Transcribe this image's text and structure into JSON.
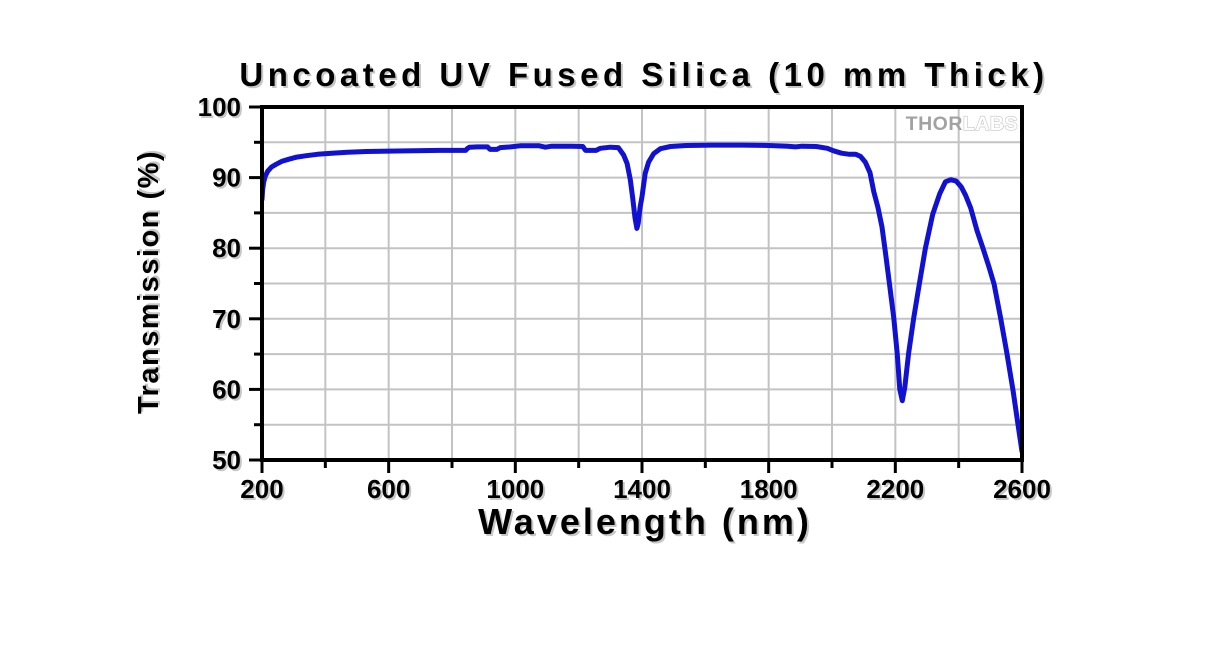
{
  "page": {
    "background": "#ffffff"
  },
  "watermark": {
    "brand_bold": "THOR",
    "brand_light": "LABS"
  },
  "colors": {
    "line": "#1111d1",
    "grid": "#c3c3c3",
    "axis": "#000000",
    "text": "#000000",
    "watermark_bold": "#a2a2a2",
    "watermark_light_stroke": "#c4c4c4",
    "watermark_light_fill": "#ffffff",
    "background": "#ffffff"
  },
  "chart_data": {
    "type": "line",
    "title": "Uncoated UV Fused Silica (10 mm Thick)",
    "xlabel": "Wavelength (nm)",
    "ylabel": "Transmission (%)",
    "xlim": [
      200,
      2600
    ],
    "ylim": [
      50,
      100
    ],
    "x_major_ticks": [
      200,
      600,
      1000,
      1400,
      1800,
      2200,
      2600
    ],
    "x_minor_ticks": [
      400,
      800,
      1200,
      1600,
      2000,
      2400
    ],
    "y_major_ticks": [
      50,
      60,
      70,
      80,
      90,
      100
    ],
    "y_minor_ticks": [
      55,
      65,
      75,
      85,
      95
    ],
    "grid": {
      "visible": true,
      "x_step": 200,
      "y_step": 5
    },
    "legend_position": "none",
    "annotations": [
      "THORLABS watermark, top-right inside plot"
    ],
    "series": [
      {
        "name": "Transmission",
        "color": "#1111d1",
        "points": [
          [
            200,
            86.9
          ],
          [
            202,
            88.2
          ],
          [
            205,
            89.3
          ],
          [
            210,
            90.2
          ],
          [
            218,
            90.9
          ],
          [
            230,
            91.5
          ],
          [
            245,
            91.9
          ],
          [
            262,
            92.3
          ],
          [
            285,
            92.6
          ],
          [
            310,
            92.9
          ],
          [
            340,
            93.1
          ],
          [
            375,
            93.3
          ],
          [
            420,
            93.45
          ],
          [
            470,
            93.6
          ],
          [
            530,
            93.7
          ],
          [
            600,
            93.75
          ],
          [
            680,
            93.8
          ],
          [
            760,
            93.85
          ],
          [
            843,
            93.85
          ],
          [
            848,
            94.1
          ],
          [
            855,
            94.3
          ],
          [
            880,
            94.35
          ],
          [
            912,
            94.35
          ],
          [
            920,
            94.0
          ],
          [
            942,
            94.0
          ],
          [
            952,
            94.25
          ],
          [
            985,
            94.35
          ],
          [
            1015,
            94.5
          ],
          [
            1075,
            94.5
          ],
          [
            1095,
            94.3
          ],
          [
            1115,
            94.45
          ],
          [
            1180,
            94.45
          ],
          [
            1213,
            94.4
          ],
          [
            1222,
            93.85
          ],
          [
            1255,
            93.85
          ],
          [
            1268,
            94.15
          ],
          [
            1300,
            94.3
          ],
          [
            1325,
            94.25
          ],
          [
            1342,
            93.2
          ],
          [
            1353,
            92.0
          ],
          [
            1363,
            89.7
          ],
          [
            1371,
            87.0
          ],
          [
            1378,
            84.3
          ],
          [
            1384,
            82.8
          ],
          [
            1388,
            83.5
          ],
          [
            1394,
            85.8
          ],
          [
            1400,
            87.3
          ],
          [
            1410,
            90.6
          ],
          [
            1421,
            92.2
          ],
          [
            1437,
            93.4
          ],
          [
            1458,
            94.1
          ],
          [
            1490,
            94.4
          ],
          [
            1540,
            94.55
          ],
          [
            1620,
            94.6
          ],
          [
            1720,
            94.6
          ],
          [
            1800,
            94.55
          ],
          [
            1860,
            94.45
          ],
          [
            1885,
            94.35
          ],
          [
            1905,
            94.45
          ],
          [
            1950,
            94.4
          ],
          [
            1985,
            94.15
          ],
          [
            2005,
            93.8
          ],
          [
            2030,
            93.45
          ],
          [
            2055,
            93.3
          ],
          [
            2075,
            93.3
          ],
          [
            2090,
            93.0
          ],
          [
            2105,
            92.2
          ],
          [
            2120,
            90.7
          ],
          [
            2132,
            88.0
          ],
          [
            2145,
            85.8
          ],
          [
            2158,
            83.0
          ],
          [
            2170,
            79.0
          ],
          [
            2182,
            74.8
          ],
          [
            2195,
            70.1
          ],
          [
            2206,
            65.1
          ],
          [
            2214,
            60.0
          ],
          [
            2222,
            58.4
          ],
          [
            2230,
            60.3
          ],
          [
            2242,
            65.1
          ],
          [
            2258,
            70.1
          ],
          [
            2276,
            75.0
          ],
          [
            2295,
            80.0
          ],
          [
            2318,
            84.8
          ],
          [
            2340,
            87.7
          ],
          [
            2358,
            89.4
          ],
          [
            2375,
            89.7
          ],
          [
            2392,
            89.5
          ],
          [
            2408,
            88.7
          ],
          [
            2422,
            87.5
          ],
          [
            2438,
            85.7
          ],
          [
            2458,
            82.5
          ],
          [
            2478,
            79.8
          ],
          [
            2496,
            77.3
          ],
          [
            2512,
            74.9
          ],
          [
            2532,
            70.2
          ],
          [
            2552,
            65.2
          ],
          [
            2572,
            59.8
          ],
          [
            2586,
            55.4
          ],
          [
            2600,
            51.2
          ]
        ]
      }
    ]
  }
}
